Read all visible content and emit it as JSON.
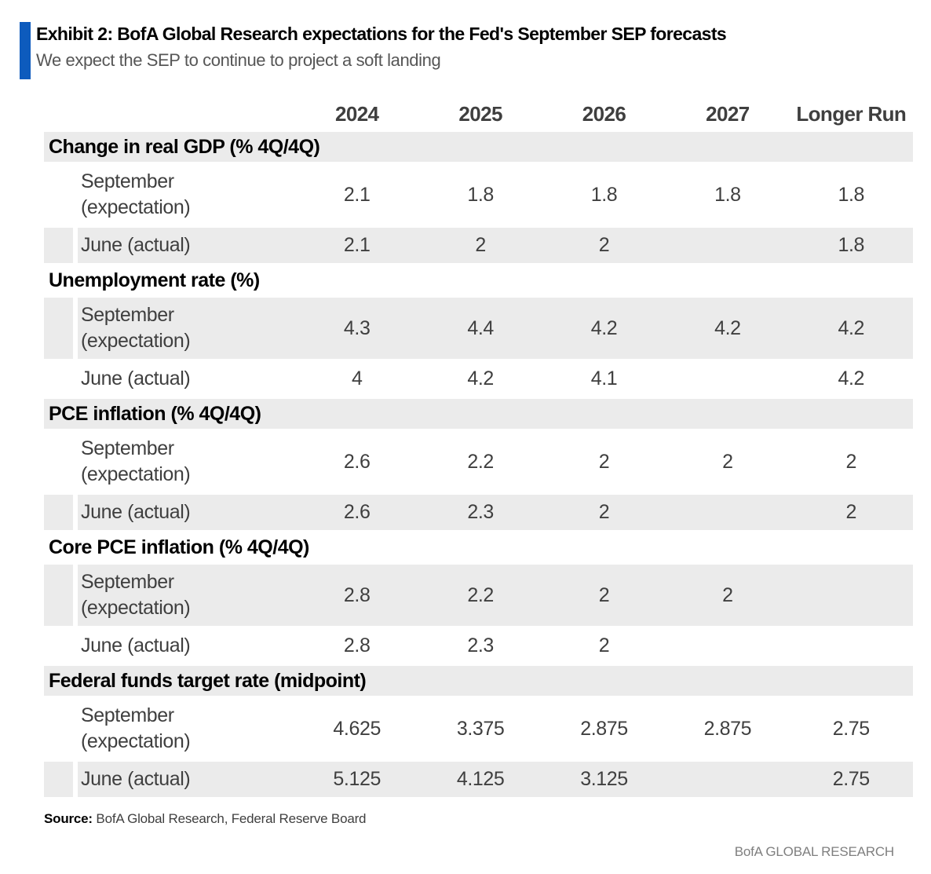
{
  "header": {
    "exhibit_title": "Exhibit 2: BofA Global Research expectations for the Fed's September SEP forecasts",
    "subtitle": "We expect the SEP to continue to project a soft landing"
  },
  "colors": {
    "accent_bar": "#0d5bbd",
    "row_shade": "#ebebeb"
  },
  "chart_data": {
    "type": "table",
    "columns": [
      "2024",
      "2025",
      "2026",
      "2027",
      "Longer Run"
    ],
    "sections": [
      {
        "title": "Change in real GDP (% 4Q/4Q)",
        "title_shaded": true,
        "rows": [
          {
            "label": "September\n(expectation)",
            "shaded": false,
            "values": [
              "2.1",
              "1.8",
              "1.8",
              "1.8",
              "1.8"
            ]
          },
          {
            "label": "June (actual)",
            "shaded": true,
            "values": [
              "2.1",
              "2",
              "2",
              "",
              "1.8"
            ]
          }
        ]
      },
      {
        "title": "Unemployment rate (%)",
        "title_shaded": false,
        "rows": [
          {
            "label": "September\n(expectation)",
            "shaded": true,
            "values": [
              "4.3",
              "4.4",
              "4.2",
              "4.2",
              "4.2"
            ]
          },
          {
            "label": "June (actual)",
            "shaded": false,
            "values": [
              "4",
              "4.2",
              "4.1",
              "",
              "4.2"
            ]
          }
        ]
      },
      {
        "title": "PCE inflation (% 4Q/4Q)",
        "title_shaded": true,
        "rows": [
          {
            "label": "September\n(expectation)",
            "shaded": false,
            "values": [
              "2.6",
              "2.2",
              "2",
              "2",
              "2"
            ]
          },
          {
            "label": "June (actual)",
            "shaded": true,
            "values": [
              "2.6",
              "2.3",
              "2",
              "",
              "2"
            ]
          }
        ]
      },
      {
        "title": "Core PCE inflation (% 4Q/4Q)",
        "title_shaded": false,
        "rows": [
          {
            "label": "September\n(expectation)",
            "shaded": true,
            "values": [
              "2.8",
              "2.2",
              "2",
              "2",
              ""
            ]
          },
          {
            "label": "June (actual)",
            "shaded": false,
            "values": [
              "2.8",
              "2.3",
              "2",
              "",
              ""
            ]
          }
        ]
      },
      {
        "title": "Federal funds target rate (midpoint)",
        "title_shaded": true,
        "rows": [
          {
            "label": "September\n(expectation)",
            "shaded": false,
            "values": [
              "4.625",
              "3.375",
              "2.875",
              "2.875",
              "2.75"
            ]
          },
          {
            "label": "June (actual)",
            "shaded": true,
            "values": [
              "5.125",
              "4.125",
              "3.125",
              "",
              "2.75"
            ]
          }
        ]
      }
    ]
  },
  "footer": {
    "source_label": "Source:",
    "source_text": " BofA Global Research, Federal Reserve Board",
    "brand": "BofA GLOBAL RESEARCH"
  }
}
